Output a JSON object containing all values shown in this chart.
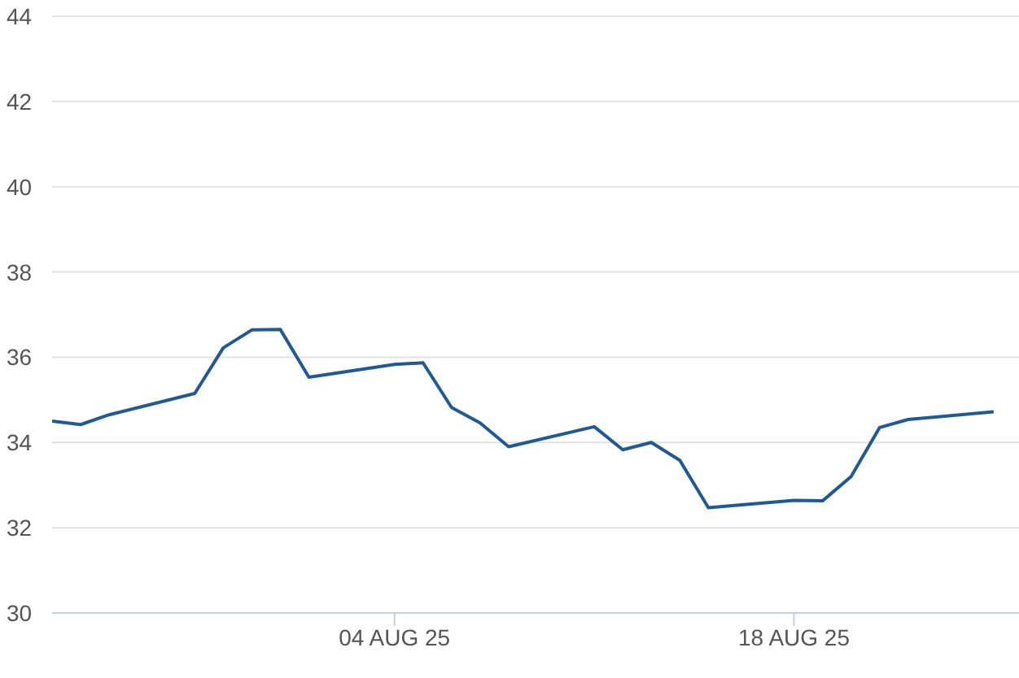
{
  "chart_data": {
    "type": "line",
    "x": [
      "--07-23",
      "--07-24",
      "--07-25",
      "--07-28",
      "--07-29",
      "--07-30",
      "--07-31",
      "--08-01",
      "--08-04",
      "--08-05",
      "--08-06",
      "--08-07",
      "--08-08",
      "--08-11",
      "--08-12",
      "--08-13",
      "--08-14",
      "--08-15",
      "--08-18",
      "--08-19",
      "--08-20",
      "--08-21",
      "--08-22",
      "--08-25"
    ],
    "series": [
      {
        "color": "#1f5a96",
        "values": [
          34.5,
          34.42,
          34.65,
          35.15,
          36.22,
          36.64,
          36.65,
          35.53,
          35.83,
          35.87,
          34.82,
          34.46,
          33.9,
          34.37,
          33.83,
          34.0,
          33.58,
          32.47,
          32.64,
          32.63,
          33.2,
          34.35,
          34.54,
          34.72
        ]
      }
    ],
    "xlim": [
      "--07-23",
      "--08-26"
    ],
    "xticks": [
      {
        "value": "--08-04",
        "label": "04 AUG 25"
      },
      {
        "value": "--08-18",
        "label": "18 AUG 25"
      }
    ],
    "ylim": [
      30,
      44
    ],
    "yticks": [
      30,
      32,
      34,
      36,
      38,
      40,
      42,
      44
    ],
    "grid": "y",
    "legend": false,
    "marker": "none",
    "line_style": "solid"
  }
}
